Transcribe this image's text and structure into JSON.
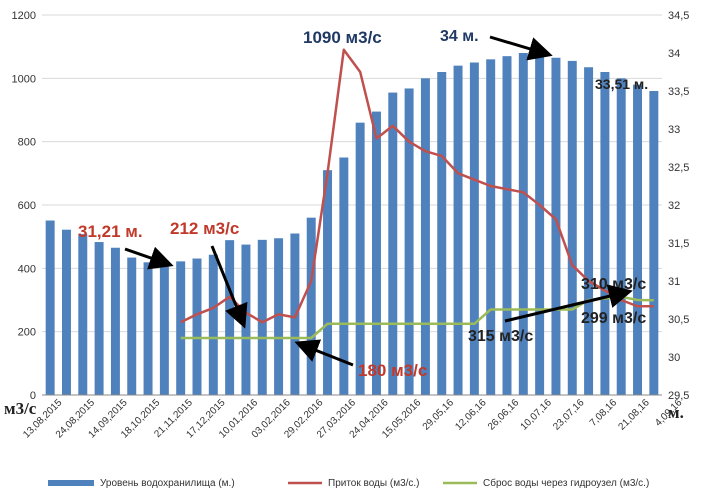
{
  "chart_data": {
    "type": "bar+line",
    "categories": [
      "13,08,2015",
      "24,08,2015",
      "14,09,2015",
      "18,10,2015",
      "21,11,2015",
      "17,12,2015",
      "10,01,2016",
      "03,02,2016",
      "29,02,2016",
      "27,03,2016",
      "24,04,2016",
      "15,05,2016",
      "29,05,16",
      "12,06,16",
      "26,06,16",
      "10,07,16",
      "23,07,16",
      "7,08,16",
      "21,08,16",
      "4,09,16"
    ],
    "left_axis": {
      "ylim": [
        0,
        1200
      ],
      "ticks": [
        "0",
        "200",
        "400",
        "600",
        "800",
        "1000",
        "1200"
      ],
      "unit_label": "м3/с"
    },
    "right_axis": {
      "ylim": [
        29.5,
        34.5
      ],
      "ticks": [
        "29,5",
        "30",
        "30,5",
        "31",
        "31,5",
        "32",
        "32,5",
        "33",
        "33,5",
        "34",
        "34,5"
      ],
      "unit_label": "м."
    },
    "bar_series": {
      "name": "Уровень водохранилища (м.)",
      "color": "#4f81bd",
      "values": [
        551,
        522,
        508,
        483,
        465,
        434,
        419,
        420,
        422,
        431,
        443,
        489,
        475,
        490,
        495,
        510,
        560,
        710,
        750,
        860,
        895,
        955,
        968,
        1000,
        1020,
        1040,
        1050,
        1060,
        1070,
        1080,
        1075,
        1065,
        1055,
        1035,
        1020,
        1000,
        980,
        960
      ]
    },
    "line_series": [
      {
        "name": "Приток воды (м3/с.)",
        "color": "#c0504d",
        "values": [
          null,
          null,
          null,
          null,
          null,
          null,
          null,
          null,
          null,
          null,
          null,
          null,
          null,
          null,
          null,
          null,
          null,
          null,
          null,
          null,
          null,
          null,
          null,
          null,
          null,
          null,
          null,
          null,
          null,
          null,
          null,
          null,
          null,
          null,
          null,
          null,
          null,
          null
        ]
      },
      {
        "name": "Сброс воды через гидроузел (м3/с.)",
        "color": "#9bbb59",
        "values": []
      }
    ],
    "inflow_points": [
      [
        8,
        230
      ],
      [
        9,
        255
      ],
      [
        10,
        275
      ],
      [
        11,
        310
      ],
      [
        12,
        260
      ],
      [
        13,
        230
      ],
      [
        14,
        255
      ],
      [
        15,
        245
      ],
      [
        16,
        360
      ],
      [
        17,
        700
      ],
      [
        18,
        1090
      ],
      [
        19,
        1020
      ],
      [
        20,
        810
      ],
      [
        21,
        850
      ],
      [
        22,
        800
      ],
      [
        23,
        770
      ],
      [
        24,
        755
      ],
      [
        25,
        700
      ],
      [
        26,
        680
      ],
      [
        27,
        660
      ],
      [
        28,
        650
      ],
      [
        29,
        640
      ],
      [
        30,
        600
      ],
      [
        31,
        555
      ],
      [
        32,
        410
      ],
      [
        33,
        360
      ],
      [
        34,
        330
      ],
      [
        35,
        300
      ],
      [
        36,
        280
      ],
      [
        37,
        280
      ]
    ],
    "outflow_points": [
      [
        8,
        180
      ],
      [
        9,
        180
      ],
      [
        10,
        180
      ],
      [
        11,
        180
      ],
      [
        12,
        180
      ],
      [
        13,
        180
      ],
      [
        14,
        180
      ],
      [
        15,
        180
      ],
      [
        16,
        180
      ],
      [
        17,
        225
      ],
      [
        18,
        225
      ],
      [
        19,
        225
      ],
      [
        20,
        225
      ],
      [
        21,
        225
      ],
      [
        22,
        225
      ],
      [
        23,
        225
      ],
      [
        24,
        225
      ],
      [
        25,
        225
      ],
      [
        26,
        225
      ],
      [
        27,
        270
      ],
      [
        28,
        270
      ],
      [
        29,
        270
      ],
      [
        30,
        270
      ],
      [
        31,
        270
      ],
      [
        32,
        270
      ],
      [
        33,
        300
      ],
      [
        34,
        305
      ],
      [
        35,
        310
      ],
      [
        36,
        300
      ],
      [
        37,
        299
      ]
    ],
    "annotations": [
      {
        "text": "1090 м3/с",
        "color": "#1f3864"
      },
      {
        "text": "34 м.",
        "color": "#1f3864"
      },
      {
        "text": "33,51 м.",
        "color": "#222222"
      },
      {
        "text": "31,21 м.",
        "color": "#c0392b"
      },
      {
        "text": "212 м3/с",
        "color": "#c0392b"
      },
      {
        "text": "180 м3/с",
        "color": "#c0392b"
      },
      {
        "text": "310 м3/с",
        "color": "#222222"
      },
      {
        "text": "299 м3/с",
        "color": "#222222"
      },
      {
        "text": "315 м3/с",
        "color": "#222222"
      }
    ],
    "grid": true,
    "legend_position": "bottom"
  }
}
